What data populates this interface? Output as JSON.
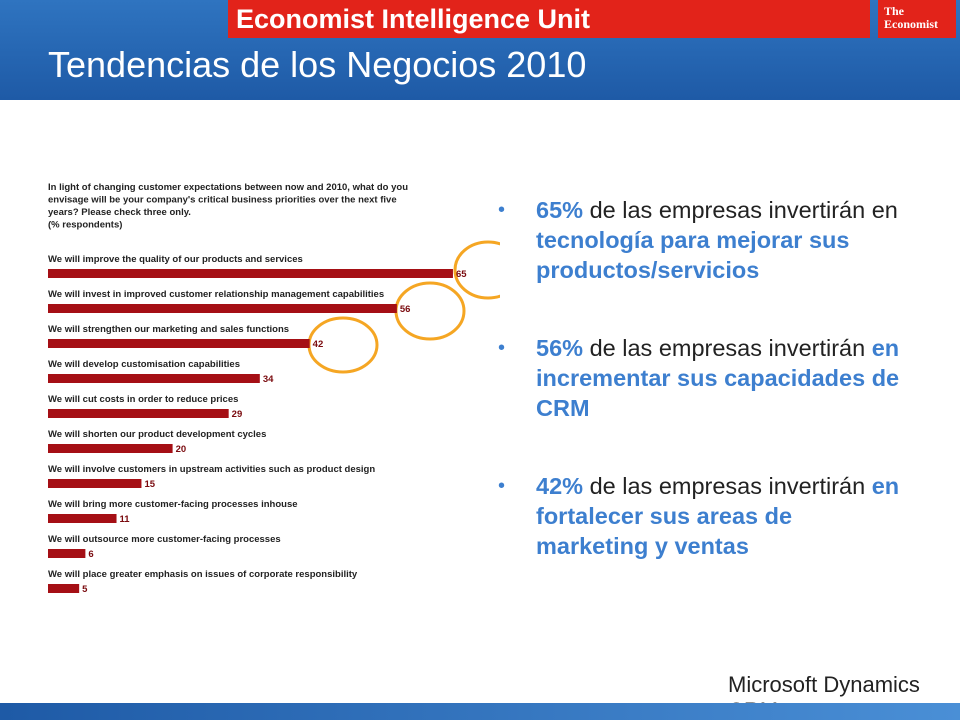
{
  "header": {
    "banner": "Economist Intelligence Unit",
    "brand": "The Economist",
    "title": "Tendencias de los Negocios 2010"
  },
  "chart_data": {
    "type": "bar",
    "orientation": "horizontal",
    "title": "In light of changing customer expectations between now and 2010, what do you envisage will be your company's critical business priorities over the next five years? Please check three only.",
    "subtitle": "(% respondents)",
    "categories": [
      "We will improve the quality of our products and services",
      "We will invest in improved customer relationship management capabilities",
      "We will strengthen our marketing and sales functions",
      "We will develop customisation capabilities",
      "We will cut costs in order to reduce prices",
      "We will shorten our product development cycles",
      "We will involve customers in upstream activities such as product design",
      "We will bring more customer-facing processes inhouse",
      "We will outsource more customer-facing processes",
      "We will place greater emphasis on issues of corporate responsibility"
    ],
    "values": [
      65,
      56,
      42,
      34,
      29,
      20,
      15,
      11,
      6,
      5
    ],
    "color": "#a50f15"
  },
  "bullets": [
    {
      "figure": "65%",
      "text": "de las empresas invertirán en",
      "emphasis": "tecnología para mejorar sus productos/servicios"
    },
    {
      "figure": "56%",
      "text": "de las empresas invertirán",
      "emphasis": "en incrementar sus capacidades de CRM"
    },
    {
      "figure": "42%",
      "text": "de las empresas invertirán",
      "emphasis": "en fortalecer sus areas de marketing y ventas"
    }
  ],
  "logo": "Microsoft Dynamics CRM"
}
